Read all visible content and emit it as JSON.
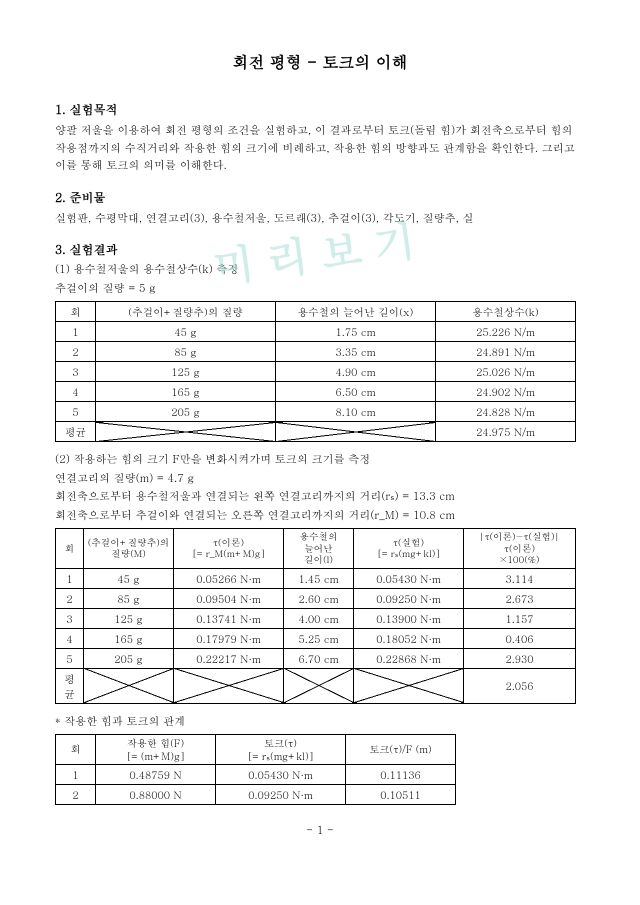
{
  "watermark": "미리보기",
  "title": "회전 평형 - 토크의 이해",
  "sections": {
    "s1": {
      "heading": "1. 실험목적",
      "body": "양팔 저울을 이용하여 회전 평형의 조건을 실험하고, 이 결과로부터 토크(돌림 힘)가 회전축으로부터 힘의 작용점까지의 수직거리와 작용한 힘의 크기에 비례하고, 작용한 힘의 방향과도 관계함을 확인한다. 그리고 이를 통해 토크의 의미를 이해한다."
    },
    "s2": {
      "heading": "2. 준비물",
      "body": "실험판, 수평막대, 연결고리(3), 용수철저울, 도르래(3), 추걸이(3), 각도기, 질량추, 실"
    },
    "s3": {
      "heading": "3. 실험결과"
    }
  },
  "exp1": {
    "caption": "(1) 용수철저울의 용수철상수(k) 측정",
    "note": "추걸이의 질량 = 5 g",
    "headers": [
      "회",
      "(추걸이+질량추)의 질량",
      "용수철의 늘어난 길이(x)",
      "용수철상수(k)"
    ],
    "rows": [
      [
        "1",
        "45 g",
        "1.75 cm",
        "25.226 N/m"
      ],
      [
        "2",
        "85 g",
        "3.35 cm",
        "24.891 N/m"
      ],
      [
        "3",
        "125 g",
        "4.90 cm",
        "25.026 N/m"
      ],
      [
        "4",
        "165 g",
        "6.50 cm",
        "24.902 N/m"
      ],
      [
        "5",
        "205 g",
        "8.10 cm",
        "24.828 N/m"
      ]
    ],
    "avg_label": "평균",
    "avg_value": "24.975 N/m"
  },
  "exp2": {
    "caption": "(2) 작용하는 힘의 크기 F만을 변화시켜가며 토크의 크기를 측정",
    "note1": "연결고리의 질량(m) = 4.7 g",
    "note2": "회전축으로부터 용수철저울과 연결되는 왼쪽 연결고리까지의 거리(rₛ) = 13.3 cm",
    "note3": "회전축으로부터 추걸이와 연결되는 오른쪽 연결고리까지의 거리(r_M) = 10.8 cm",
    "headers": [
      "회",
      "(추걸이+질량추)의 질량(M)",
      "τ(이론)\n[= r_M(m+M)g]",
      "용수철의\n늘어난\n길이(l)",
      "τ(실험)\n[= rₛ(mg+kl)]",
      "|τ(이론)−τ(실험)|\nτ(이론)\n×100(%)"
    ],
    "rows": [
      [
        "1",
        "45 g",
        "0.05266 N·m",
        "1.45 cm",
        "0.05430 N·m",
        "3.114"
      ],
      [
        "2",
        "85 g",
        "0.09504 N·m",
        "2.60 cm",
        "0.09250 N·m",
        "2.673"
      ],
      [
        "3",
        "125 g",
        "0.13741 N·m",
        "4.00 cm",
        "0.13900 N·m",
        "1.157"
      ],
      [
        "4",
        "165 g",
        "0.17979 N·m",
        "5.25 cm",
        "0.18052 N·m",
        "0.406"
      ],
      [
        "5",
        "205 g",
        "0.22217 N·m",
        "6.70 cm",
        "0.22868 N·m",
        "2.930"
      ]
    ],
    "avg_label": "평균",
    "avg_value": "2.056"
  },
  "exp3": {
    "caption": "* 작용한 힘과 토크의 관계",
    "headers": [
      "회",
      "작용한 힘(F)\n[= (m+M)g]",
      "토크(τ)\n[= rₛ(mg+kl)]",
      "토크(τ)/F (m)"
    ],
    "rows": [
      [
        "1",
        "0.48759 N",
        "0.05430 N·m",
        "0.11136"
      ],
      [
        "2",
        "0.88000 N",
        "0.09250 N·m",
        "0.10511"
      ]
    ]
  },
  "page_number": "- 1 -",
  "col_widths": {
    "t1": [
      40,
      180,
      160,
      140
    ],
    "t2": [
      28,
      90,
      110,
      70,
      110,
      112
    ],
    "t3": [
      40,
      120,
      130,
      110
    ]
  }
}
